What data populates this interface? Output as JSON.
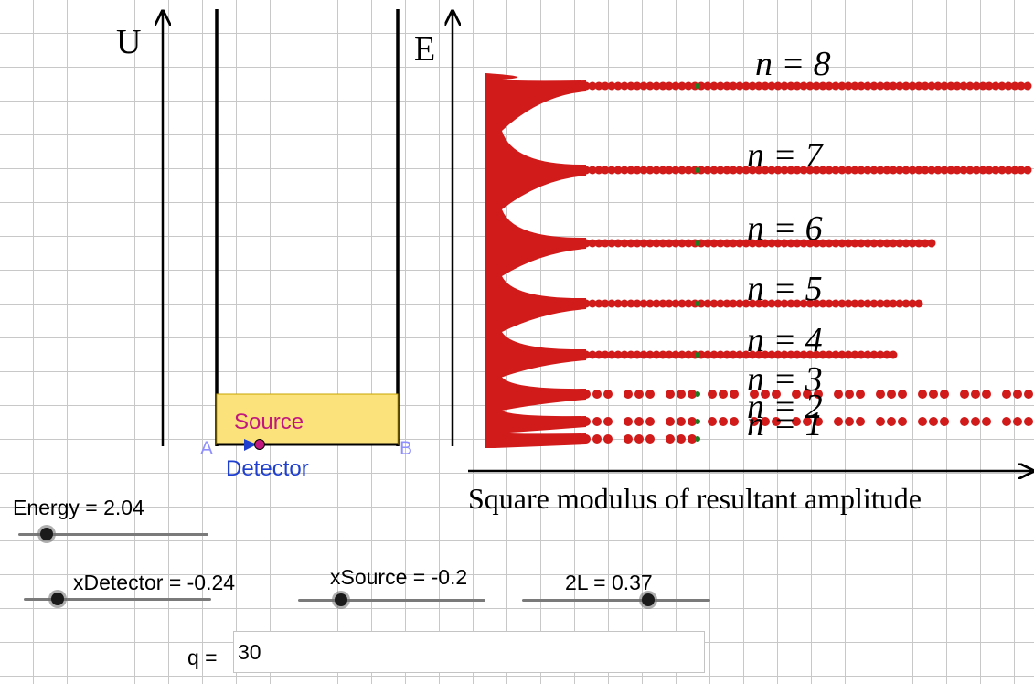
{
  "potential_panel": {
    "axis_label": "U",
    "point_a": "A",
    "point_b": "B",
    "source_label": "Source",
    "detector_label": "Detector",
    "well_fill": "#fbe27a",
    "source_color": "#c2177f",
    "detector_color": "#1f3fcf"
  },
  "energy_panel": {
    "axis_label": "E",
    "x_axis_label": "Square modulus of resultant amplitude",
    "curve_color": "#d11a1a",
    "marker_color": "#1f7a1f",
    "levels": [
      {
        "n": 1,
        "label": "n = 1",
        "extent": 0.28
      },
      {
        "n": 2,
        "label": "n = 2",
        "extent": 1.0
      },
      {
        "n": 3,
        "label": "n = 3",
        "extent": 1.0
      },
      {
        "n": 4,
        "label": "n = 4",
        "extent": 0.69
      },
      {
        "n": 5,
        "label": "n = 5",
        "extent": 0.75
      },
      {
        "n": 6,
        "label": "n = 6",
        "extent": 0.79
      },
      {
        "n": 7,
        "label": "n = 7",
        "extent": 1.0
      },
      {
        "n": 8,
        "label": "n = 8",
        "extent": 1.0
      }
    ]
  },
  "sliders": {
    "energy": {
      "label": "Energy = 2.04",
      "fraction": 0.15
    },
    "xdetector": {
      "label": "xDetector = -0.24",
      "fraction": 0.18
    },
    "xsource": {
      "label": "xSource = -0.2",
      "fraction": 0.23
    },
    "two_l": {
      "label": "2L = 0.37",
      "fraction": 0.67
    }
  },
  "q_field": {
    "label": "q =",
    "value": "30"
  }
}
